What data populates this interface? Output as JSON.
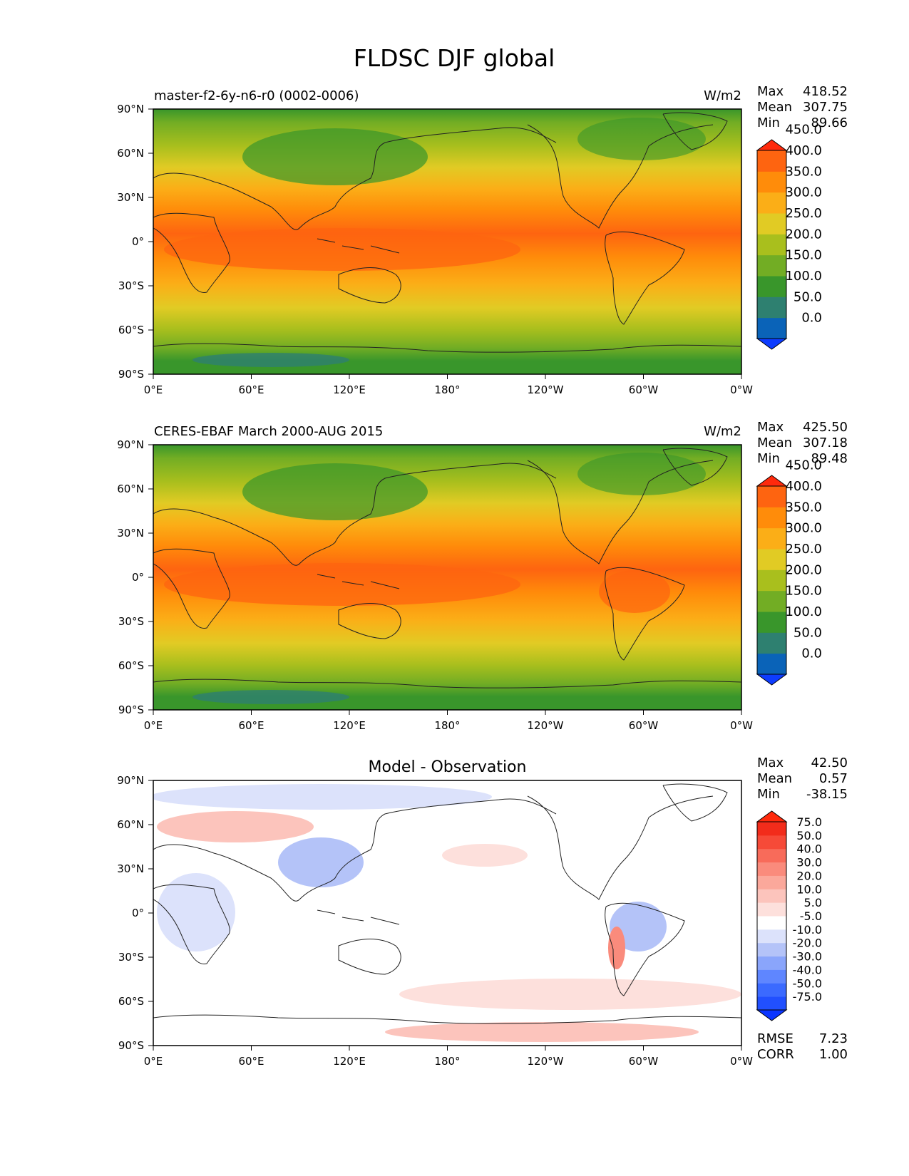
{
  "title": "FLDSC DJF global",
  "panels": [
    {
      "left_title": "master-f2-6y-n6-r0 (0002-0006)",
      "center_title": "",
      "units": "W/m2",
      "stats": [
        {
          "label": "Max",
          "value": "418.52"
        },
        {
          "label": "Mean",
          "value": "307.75"
        },
        {
          "label": "Min",
          "value": "89.66"
        }
      ],
      "colorbar": {
        "colors": [
          "#0d3cff",
          "#0a63b8",
          "#2e8070",
          "#39962b",
          "#72ad24",
          "#a9bf1d",
          "#e1cb24",
          "#fbae17",
          "#ff8c0a",
          "#fe6410",
          "#ff2a0c"
        ],
        "labels": [
          "0.0",
          "50.0",
          "100.0",
          "150.0",
          "200.0",
          "250.0",
          "300.0",
          "350.0",
          "400.0",
          "450.0"
        ]
      },
      "map": "abs"
    },
    {
      "left_title": "CERES-EBAF March 2000-AUG 2015",
      "center_title": "",
      "units": "W/m2",
      "stats": [
        {
          "label": "Max",
          "value": "425.50"
        },
        {
          "label": "Mean",
          "value": "307.18"
        },
        {
          "label": "Min",
          "value": "89.48"
        }
      ],
      "colorbar": {
        "colors": [
          "#0d3cff",
          "#0a63b8",
          "#2e8070",
          "#39962b",
          "#72ad24",
          "#a9bf1d",
          "#e1cb24",
          "#fbae17",
          "#ff8c0a",
          "#fe6410",
          "#ff2a0c"
        ],
        "labels": [
          "0.0",
          "50.0",
          "100.0",
          "150.0",
          "200.0",
          "250.0",
          "300.0",
          "350.0",
          "400.0",
          "450.0"
        ]
      },
      "map": "abs"
    },
    {
      "left_title": "",
      "center_title": "Model - Observation",
      "units": "",
      "stats": [
        {
          "label": "Max",
          "value": "42.50"
        },
        {
          "label": "Mean",
          "value": "0.57"
        },
        {
          "label": "Min",
          "value": "-38.15"
        }
      ],
      "bottom_stats": [
        {
          "label": "RMSE",
          "value": "7.23"
        },
        {
          "label": "CORR",
          "value": "1.00"
        }
      ],
      "colorbar": {
        "colors": [
          "#0b35ff",
          "#2150ff",
          "#3b6aff",
          "#5f86ff",
          "#8aa5fb",
          "#b4c3f8",
          "#dce2fb",
          "#ffffff",
          "#fde0dc",
          "#fcc4bc",
          "#fba89b",
          "#fa8b7c",
          "#f86b5a",
          "#f64a38",
          "#f22c1b",
          "#ff2a0c"
        ],
        "labels": [
          "-75.0",
          "-50.0",
          "-40.0",
          "-30.0",
          "-20.0",
          "-10.0",
          "-5.0",
          "5.0",
          "10.0",
          "20.0",
          "30.0",
          "40.0",
          "50.0",
          "75.0"
        ]
      },
      "map": "diff"
    }
  ],
  "axes": {
    "x_ticks": [
      "0°E",
      "60°E",
      "120°E",
      "180°",
      "120°W",
      "60°W",
      "0°W"
    ],
    "y_ticks": [
      "90°N",
      "60°N",
      "30°N",
      "0°",
      "30°S",
      "60°S",
      "90°S"
    ]
  }
}
